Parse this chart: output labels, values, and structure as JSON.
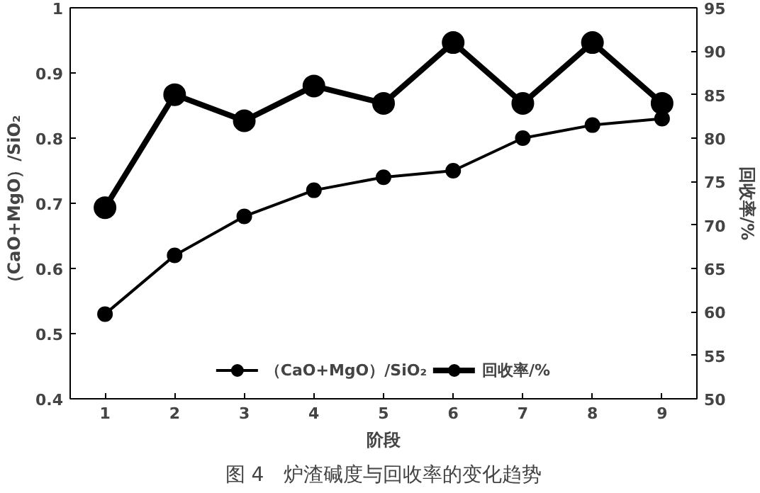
{
  "chart_data": {
    "type": "line",
    "xlabel": "阶段",
    "ylabel": "（CaO+MgO）/SiO₂",
    "y2label": "回收率/%",
    "categories": [
      "1",
      "2",
      "3",
      "4",
      "5",
      "6",
      "7",
      "8",
      "9"
    ],
    "series": [
      {
        "name": "（CaO+MgO）/SiO₂",
        "color": "#000000",
        "values": [
          0.53,
          0.62,
          0.68,
          0.72,
          0.74,
          0.75,
          0.8,
          0.82,
          0.83
        ]
      },
      {
        "name": "回收率/%",
        "color": "#000000",
        "axis": "y2",
        "values": [
          72,
          85,
          82,
          86,
          84,
          91,
          84,
          91,
          84
        ]
      }
    ],
    "ylim": [
      0.4,
      1
    ],
    "yticks": [
      0.4,
      0.5,
      0.6,
      0.7,
      0.8,
      0.9,
      1
    ],
    "y2lim": [
      50,
      95
    ],
    "y2ticks": [
      50,
      55,
      60,
      65,
      70,
      75,
      80,
      85,
      90,
      95
    ],
    "grid": false,
    "legend": "bottom",
    "marker": "circle",
    "line_style": "solid",
    "annotations": [
      "图 4　炉渣碱度与回收率的变化趋势"
    ]
  }
}
